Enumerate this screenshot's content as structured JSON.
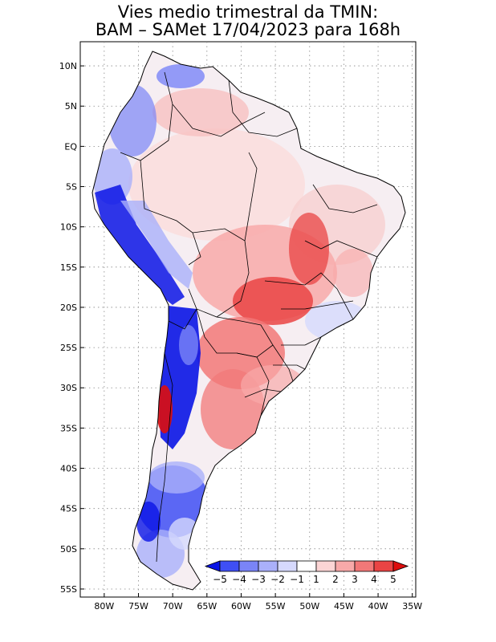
{
  "title": {
    "line1": "Vies medio trimestral da TMIN:",
    "line2": "BAM – SAMet 17/04/2023  para 168h"
  },
  "map": {
    "lon_range": [
      -83.5,
      -34.5
    ],
    "lat_range": [
      -56,
      13
    ],
    "lat_ticks": [
      {
        "value": 10,
        "label": "10N"
      },
      {
        "value": 5,
        "label": "5N"
      },
      {
        "value": 0,
        "label": "EQ"
      },
      {
        "value": -5,
        "label": "5S"
      },
      {
        "value": -10,
        "label": "10S"
      },
      {
        "value": -15,
        "label": "15S"
      },
      {
        "value": -20,
        "label": "20S"
      },
      {
        "value": -25,
        "label": "25S"
      },
      {
        "value": -30,
        "label": "30S"
      },
      {
        "value": -35,
        "label": "35S"
      },
      {
        "value": -40,
        "label": "40S"
      },
      {
        "value": -45,
        "label": "45S"
      },
      {
        "value": -50,
        "label": "50S"
      },
      {
        "value": -55,
        "label": "55S"
      }
    ],
    "lon_ticks": [
      {
        "value": -80,
        "label": "80W"
      },
      {
        "value": -75,
        "label": "75W"
      },
      {
        "value": -70,
        "label": "70W"
      },
      {
        "value": -65,
        "label": "65W"
      },
      {
        "value": -60,
        "label": "60W"
      },
      {
        "value": -55,
        "label": "55W"
      },
      {
        "value": -50,
        "label": "50W"
      },
      {
        "value": -45,
        "label": "45W"
      },
      {
        "value": -40,
        "label": "40W"
      },
      {
        "value": -35,
        "label": "35W"
      }
    ],
    "grid": "dotted"
  },
  "colorbar": {
    "labels": [
      "−5",
      "−4",
      "−3",
      "−2",
      "−1",
      "1",
      "2",
      "3",
      "4",
      "5"
    ],
    "colors": [
      "#0a14e6",
      "#3f4ff5",
      "#7a84f7",
      "#aab0fa",
      "#d6d9fd",
      "#ffffff",
      "#fcd5d5",
      "#f8a9a9",
      "#f27878",
      "#ea4444",
      "#dd0d0d"
    ]
  }
}
